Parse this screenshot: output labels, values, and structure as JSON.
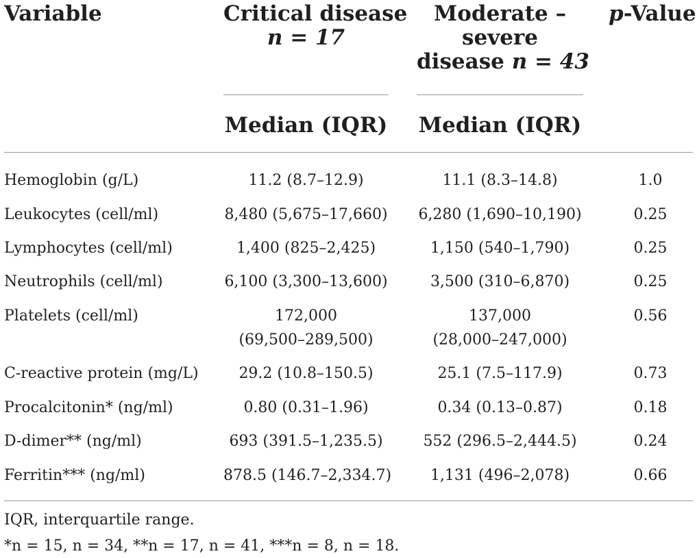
{
  "header": {
    "variable": "Variable",
    "critical_title": "Critical disease",
    "critical_n": "n = 17",
    "moderate_title_1": "Moderate –",
    "moderate_title_2": "severe",
    "moderate_title_3": "disease",
    "moderate_n": "n = 43",
    "pvalue_p": "p",
    "pvalue_rest": "-Value",
    "median_iqr_critical": "Median (IQR)",
    "median_iqr_moderate": "Median (IQR)"
  },
  "rows": [
    {
      "variable": "Hemoglobin (g/L)",
      "critical": "11.2 (8.7–12.9)",
      "moderate": "11.1 (8.3–14.8)",
      "p": "1.0"
    },
    {
      "variable": "Leukocytes (cell/ml)",
      "critical": "8,480 (5,675–17,660)",
      "moderate": "6,280 (1,690–10,190)",
      "p": "0.25"
    },
    {
      "variable": "Lymphocytes (cell/ml)",
      "critical": "1,400 (825–2,425)",
      "moderate": "1,150 (540–1,790)",
      "p": "0.25"
    },
    {
      "variable": "Neutrophils (cell/ml)",
      "critical": "6,100 (3,300–13,600)",
      "moderate": "3,500 (310–6,870)",
      "p": "0.25"
    },
    {
      "variable": "Platelets (cell/ml)",
      "critical": "172,000",
      "critical_2": "(69,500–289,500)",
      "moderate": "137,000",
      "moderate_2": "(28,000–247,000)",
      "p": "0.56"
    },
    {
      "variable": "C-reactive protein (mg/L)",
      "critical": "29.2 (10.8–150.5)",
      "moderate": "25.1 (7.5–117.9)",
      "p": "0.73"
    },
    {
      "variable": "Procalcitonin* (ng/ml)",
      "critical": "0.80 (0.31–1.96)",
      "moderate": "0.34 (0.13–0.87)",
      "p": "0.18"
    },
    {
      "variable": "D-dimer** (ng/ml)",
      "critical": "693 (391.5–1,235.5)",
      "moderate": "552 (296.5–2,444.5)",
      "p": "0.24"
    },
    {
      "variable": "Ferritin*** (ng/ml)",
      "critical": "878.5 (146.7–2,334.7)",
      "moderate": "1,131 (496–2,078)",
      "p": "0.66"
    }
  ],
  "footnotes": {
    "abbreviation": "IQR, interquartile range.",
    "sample_sizes": "*n = 15, n = 34, **n = 17, n = 41, ***n = 8, n = 18."
  }
}
